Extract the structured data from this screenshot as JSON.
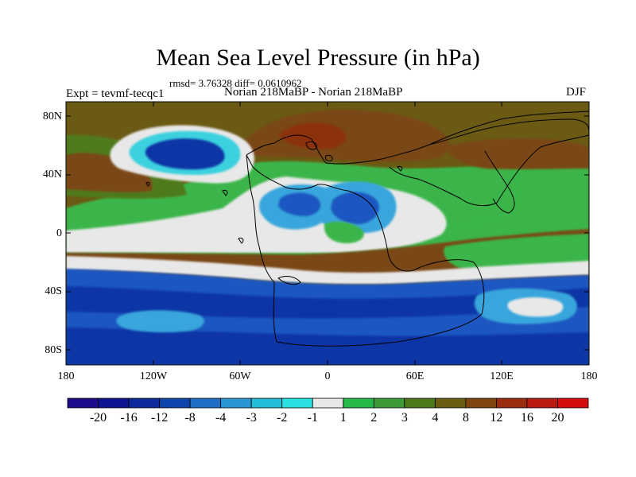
{
  "title": "Mean Sea Level Pressure (in hPa)",
  "stats": "rmsd= 3.76328 diff= 0.0610962",
  "expt_label": "Expt = tevmf-tecqc1",
  "comparison_label": "Norian 218MaBP - Norian 218MaBP",
  "season": "DJF",
  "axes": {
    "x_ticks": [
      "180",
      "120W",
      "60W",
      "0",
      "60E",
      "120E",
      "180"
    ],
    "y_ticks": [
      "80N",
      "40N",
      "0",
      "40S",
      "80S"
    ]
  },
  "colorbar": {
    "labels": [
      "-20",
      "-16",
      "-12",
      "-8",
      "-4",
      "-3",
      "-2",
      "-1",
      "1",
      "2",
      "3",
      "4",
      "8",
      "12",
      "16",
      "20"
    ],
    "colors": [
      "#1a0a8c",
      "#10138f",
      "#0e2a9a",
      "#0d45ac",
      "#1f6ec8",
      "#2a96d2",
      "#23bcd8",
      "#28e0e0",
      "#e8e8e8",
      "#27b84a",
      "#3c9a38",
      "#4f7a1c",
      "#6a5f10",
      "#7f4510",
      "#9a2c10",
      "#b81a12",
      "#d40e0e"
    ]
  },
  "colors": {
    "deep_blue": "#0d35a5",
    "blue": "#1c56c0",
    "light_blue": "#37a6dc",
    "cyan": "#3ad1de",
    "neutral": "#e8e8e8",
    "green": "#3ab54a",
    "dark_green": "#4f7a1c",
    "olive_brown": "#6a5a14",
    "brown": "#7a4716",
    "red_brown": "#8b3210"
  }
}
